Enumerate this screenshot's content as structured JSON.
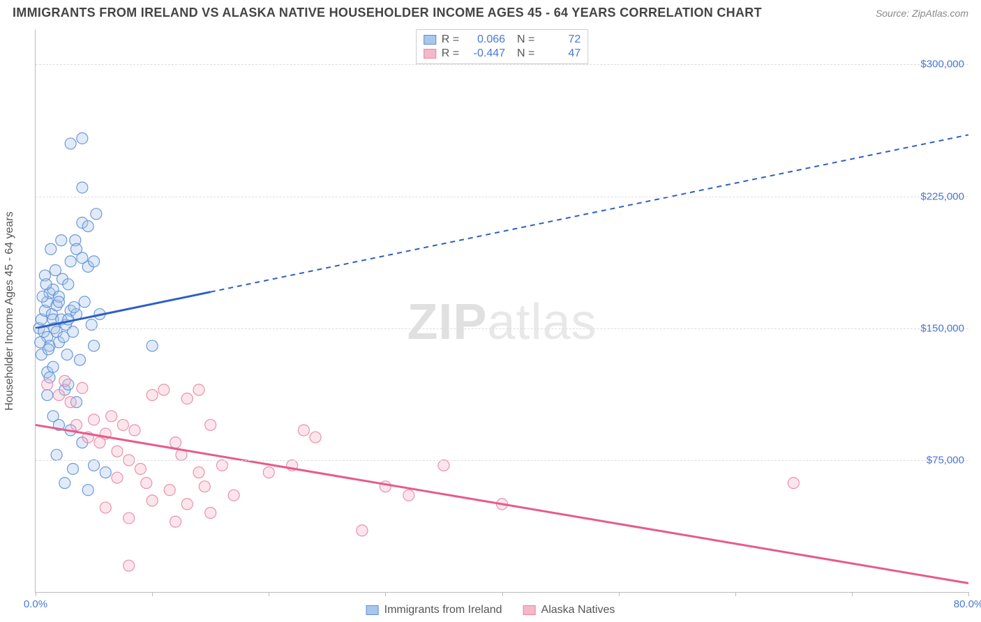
{
  "header": {
    "title": "IMMIGRANTS FROM IRELAND VS ALASKA NATIVE HOUSEHOLDER INCOME AGES 45 - 64 YEARS CORRELATION CHART",
    "source_label": "Source:",
    "source_value": "ZipAtlas.com"
  },
  "watermark": {
    "bold": "ZIP",
    "rest": "atlas"
  },
  "chart": {
    "type": "scatter-correlation",
    "background_color": "#ffffff",
    "grid_color": "#dddddd",
    "axis_color": "#bbbbbb",
    "label_color": "#4a76d4",
    "ylabel": "Householder Income Ages 45 - 64 years",
    "xlim": [
      0,
      80
    ],
    "ylim": [
      0,
      320000
    ],
    "xticks": [
      0,
      10,
      20,
      30,
      40,
      50,
      60,
      70,
      80
    ],
    "xtick_labels": {
      "0": "0.0%",
      "80": "80.0%"
    },
    "yticks": [
      75000,
      150000,
      225000,
      300000
    ],
    "ytick_labels": [
      "$75,000",
      "$150,000",
      "$225,000",
      "$300,000"
    ],
    "marker_radius": 8,
    "marker_fill_opacity": 0.35,
    "marker_stroke_opacity": 0.9,
    "series": [
      {
        "name": "Immigrants from Ireland",
        "color_fill": "#a9c6ec",
        "color_stroke": "#5e8fd6",
        "legend_color": "#a9c6ec",
        "R": "0.066",
        "N": "72",
        "trend": {
          "color": "#2d5fc4",
          "width": 3,
          "x0": 0,
          "y0": 150000,
          "x1": 80,
          "y1": 260000,
          "solid_until_x": 15
        },
        "points": [
          [
            0.3,
            150000
          ],
          [
            0.5,
            155000
          ],
          [
            0.7,
            148000
          ],
          [
            0.8,
            160000
          ],
          [
            1.0,
            145000
          ],
          [
            1.0,
            165000
          ],
          [
            1.2,
            170000
          ],
          [
            1.2,
            140000
          ],
          [
            1.4,
            158000
          ],
          [
            1.5,
            155000
          ],
          [
            1.5,
            172000
          ],
          [
            1.6,
            150000
          ],
          [
            1.8,
            148000
          ],
          [
            1.8,
            163000
          ],
          [
            2.0,
            142000
          ],
          [
            2.0,
            168000
          ],
          [
            2.2,
            155000
          ],
          [
            2.3,
            178000
          ],
          [
            2.4,
            145000
          ],
          [
            2.6,
            152000
          ],
          [
            2.7,
            135000
          ],
          [
            2.8,
            175000
          ],
          [
            3.0,
            188000
          ],
          [
            3.0,
            160000
          ],
          [
            3.2,
            148000
          ],
          [
            3.4,
            200000
          ],
          [
            3.5,
            158000
          ],
          [
            3.5,
            195000
          ],
          [
            3.8,
            132000
          ],
          [
            4.0,
            190000
          ],
          [
            4.0,
            210000
          ],
          [
            4.2,
            165000
          ],
          [
            4.5,
            208000
          ],
          [
            4.5,
            185000
          ],
          [
            5.0,
            188000
          ],
          [
            5.0,
            140000
          ],
          [
            5.2,
            215000
          ],
          [
            5.5,
            158000
          ],
          [
            3.0,
            255000
          ],
          [
            4.0,
            258000
          ],
          [
            4.0,
            230000
          ],
          [
            1.0,
            125000
          ],
          [
            1.2,
            122000
          ],
          [
            2.5,
            115000
          ],
          [
            2.8,
            118000
          ],
          [
            3.5,
            108000
          ],
          [
            1.5,
            100000
          ],
          [
            2.0,
            95000
          ],
          [
            3.0,
            92000
          ],
          [
            4.0,
            85000
          ],
          [
            1.8,
            78000
          ],
          [
            3.2,
            70000
          ],
          [
            5.0,
            72000
          ],
          [
            6.0,
            68000
          ],
          [
            2.5,
            62000
          ],
          [
            4.5,
            58000
          ],
          [
            0.8,
            180000
          ],
          [
            1.3,
            195000
          ],
          [
            2.2,
            200000
          ],
          [
            0.5,
            135000
          ],
          [
            1.0,
            112000
          ],
          [
            1.5,
            128000
          ],
          [
            0.6,
            168000
          ],
          [
            0.9,
            175000
          ],
          [
            1.7,
            183000
          ],
          [
            2.0,
            165000
          ],
          [
            0.4,
            142000
          ],
          [
            1.1,
            138000
          ],
          [
            2.8,
            155000
          ],
          [
            3.3,
            162000
          ],
          [
            10.0,
            140000
          ],
          [
            4.8,
            152000
          ]
        ]
      },
      {
        "name": "Alaska Natives",
        "color_fill": "#f5b8c9",
        "color_stroke": "#e885a5",
        "legend_color": "#f5b8c9",
        "R": "-0.447",
        "N": "47",
        "trend": {
          "color": "#e75a8a",
          "width": 3,
          "x0": 0,
          "y0": 95000,
          "x1": 80,
          "y1": 5000,
          "solid_until_x": 80
        },
        "points": [
          [
            1.0,
            118000
          ],
          [
            2.0,
            112000
          ],
          [
            2.5,
            120000
          ],
          [
            3.0,
            108000
          ],
          [
            3.5,
            95000
          ],
          [
            4.0,
            116000
          ],
          [
            4.5,
            88000
          ],
          [
            5.0,
            98000
          ],
          [
            5.5,
            85000
          ],
          [
            6.0,
            90000
          ],
          [
            6.5,
            100000
          ],
          [
            7.0,
            80000
          ],
          [
            7.5,
            95000
          ],
          [
            8.0,
            75000
          ],
          [
            8.5,
            92000
          ],
          [
            9.0,
            70000
          ],
          [
            10.0,
            112000
          ],
          [
            11.0,
            115000
          ],
          [
            12.0,
            85000
          ],
          [
            12.5,
            78000
          ],
          [
            13.0,
            110000
          ],
          [
            14.0,
            68000
          ],
          [
            15.0,
            95000
          ],
          [
            16.0,
            72000
          ],
          [
            10.0,
            52000
          ],
          [
            11.5,
            58000
          ],
          [
            13.0,
            50000
          ],
          [
            14.5,
            60000
          ],
          [
            6.0,
            48000
          ],
          [
            8.0,
            42000
          ],
          [
            15.0,
            45000
          ],
          [
            17.0,
            55000
          ],
          [
            23.0,
            92000
          ],
          [
            24.0,
            88000
          ],
          [
            20.0,
            68000
          ],
          [
            22.0,
            72000
          ],
          [
            14.0,
            115000
          ],
          [
            28.0,
            35000
          ],
          [
            30.0,
            60000
          ],
          [
            32.0,
            55000
          ],
          [
            35.0,
            72000
          ],
          [
            40.0,
            50000
          ],
          [
            7.0,
            65000
          ],
          [
            9.5,
            62000
          ],
          [
            12.0,
            40000
          ],
          [
            8.0,
            15000
          ],
          [
            65.0,
            62000
          ]
        ]
      }
    ],
    "legend_bottom": [
      {
        "label": "Immigrants from Ireland",
        "fill": "#a9c6ec",
        "stroke": "#5e8fd6"
      },
      {
        "label": "Alaska Natives",
        "fill": "#f5b8c9",
        "stroke": "#e885a5"
      }
    ]
  }
}
